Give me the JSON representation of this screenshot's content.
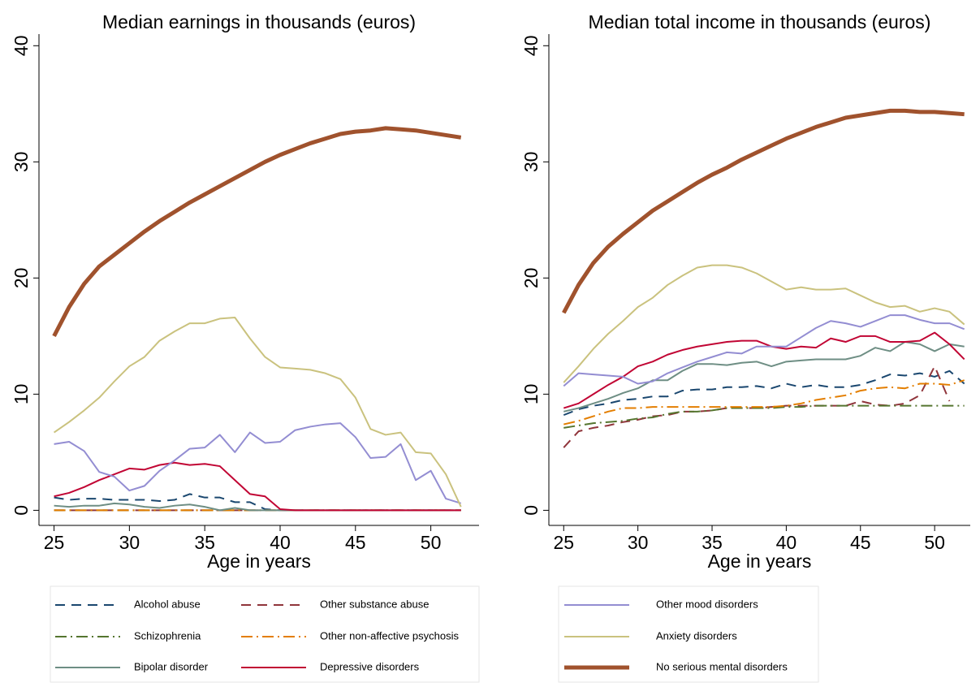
{
  "chart_data": [
    {
      "type": "line",
      "title": "Median earnings in thousands (euros)",
      "x_label": "Age in years",
      "x": [
        25,
        26,
        27,
        28,
        29,
        30,
        31,
        32,
        33,
        34,
        35,
        36,
        37,
        38,
        39,
        40,
        41,
        42,
        43,
        44,
        45,
        46,
        47,
        48,
        49,
        50,
        51,
        52
      ],
      "xlim": [
        24,
        53.2
      ],
      "xticks": [
        25,
        30,
        35,
        40,
        45,
        50
      ],
      "ylim": [
        -1.3,
        41
      ],
      "yticks": [
        0,
        10,
        20,
        30,
        40
      ],
      "series": [
        {
          "name": "Alcohol abuse",
          "color": "#1a476f",
          "style": "dash",
          "width": 2,
          "values": [
            1.1,
            0.9,
            1,
            1,
            0.9,
            0.9,
            0.9,
            0.8,
            0.9,
            1.4,
            1.1,
            1.1,
            0.7,
            0.7,
            0.1,
            0,
            0,
            0,
            0,
            0,
            0,
            0,
            0,
            0,
            0,
            0,
            0,
            0
          ]
        },
        {
          "name": "Other substance abuse",
          "color": "#90353b",
          "style": "dash",
          "width": 2,
          "values": [
            0,
            0,
            0,
            0,
            0,
            0,
            0,
            0,
            0,
            0,
            0,
            0,
            0,
            0,
            0,
            0,
            0,
            0,
            0,
            0,
            0,
            0,
            0,
            0,
            0,
            0,
            0,
            0
          ]
        },
        {
          "name": "Schizophrenia",
          "color": "#55752f",
          "style": "dashdot",
          "width": 2,
          "values": [
            0,
            0,
            0,
            0,
            0,
            0,
            0,
            0,
            0,
            0,
            0,
            0,
            0,
            0,
            0,
            0,
            0,
            0,
            0,
            0,
            0,
            0,
            0,
            0,
            0,
            0,
            0,
            0
          ]
        },
        {
          "name": "Other non-affective psychosis",
          "color": "#e37e00",
          "style": "dashdot",
          "width": 2,
          "values": [
            0,
            0,
            0,
            0,
            0,
            0,
            0,
            0,
            0,
            0,
            0,
            0,
            0,
            0,
            0,
            0,
            0,
            0,
            0,
            0,
            0,
            0,
            0,
            0,
            0,
            0,
            0,
            0
          ]
        },
        {
          "name": "Bipolar disorder",
          "color": "#6e8e84",
          "style": "solid",
          "width": 2,
          "values": [
            0.4,
            0.3,
            0.4,
            0.4,
            0.6,
            0.5,
            0.3,
            0.2,
            0.4,
            0.5,
            0.3,
            0,
            0.2,
            0,
            0,
            0,
            0,
            0,
            0,
            0,
            0,
            0,
            0,
            0,
            0,
            0,
            0,
            0
          ]
        },
        {
          "name": "Depressive disorders",
          "color": "#c10534",
          "style": "solid",
          "width": 2,
          "values": [
            1.2,
            1.5,
            2,
            2.6,
            3.1,
            3.6,
            3.5,
            3.9,
            4.1,
            3.9,
            4,
            3.8,
            2.6,
            1.4,
            1.2,
            0.1,
            0,
            0,
            0,
            0,
            0,
            0,
            0,
            0,
            0,
            0,
            0,
            0
          ]
        },
        {
          "name": "Other mood disorders",
          "color": "#938dd2",
          "style": "solid",
          "width": 2,
          "values": [
            5.7,
            5.9,
            5.1,
            3.3,
            2.9,
            1.7,
            2.1,
            3.4,
            4.3,
            5.3,
            5.4,
            6.5,
            5,
            6.7,
            5.8,
            5.9,
            6.9,
            7.2,
            7.4,
            7.5,
            6.3,
            4.5,
            4.6,
            5.7,
            2.6,
            3.4,
            1,
            0.6
          ]
        },
        {
          "name": "Anxiety disorders",
          "color": "#cac27e",
          "style": "solid",
          "width": 2,
          "values": [
            6.7,
            7.6,
            8.6,
            9.7,
            11.1,
            12.4,
            13.2,
            14.6,
            15.4,
            16.1,
            16.1,
            16.5,
            16.6,
            14.8,
            13.2,
            12.3,
            12.2,
            12.1,
            11.8,
            11.3,
            9.7,
            7,
            6.5,
            6.7,
            5,
            4.9,
            3.1,
            0.3
          ]
        },
        {
          "name": "No serious mental disorders",
          "color": "#a0522d",
          "style": "solid",
          "width": 5,
          "values": [
            15,
            17.5,
            19.5,
            21,
            22,
            23,
            24,
            24.9,
            25.7,
            26.5,
            27.2,
            27.9,
            28.6,
            29.3,
            30,
            30.6,
            31.1,
            31.6,
            32,
            32.4,
            32.6,
            32.7,
            32.9,
            32.8,
            32.7,
            32.5,
            32.3,
            32.1
          ]
        }
      ]
    },
    {
      "type": "line",
      "title": "Median total income in thousands (euros)",
      "x_label": "Age in years",
      "x": [
        25,
        26,
        27,
        28,
        29,
        30,
        31,
        32,
        33,
        34,
        35,
        36,
        37,
        38,
        39,
        40,
        41,
        42,
        43,
        44,
        45,
        46,
        47,
        48,
        49,
        50,
        51,
        52
      ],
      "xlim": [
        24,
        52.4
      ],
      "xticks": [
        25,
        30,
        35,
        40,
        45,
        50
      ],
      "ylim": [
        -1.3,
        41
      ],
      "yticks": [
        0,
        10,
        20,
        30,
        40
      ],
      "series": [
        {
          "name": "Alcohol abuse",
          "color": "#1a476f",
          "style": "dash",
          "width": 2,
          "values": [
            8.2,
            8.7,
            9,
            9.2,
            9.5,
            9.6,
            9.8,
            9.8,
            10.3,
            10.4,
            10.4,
            10.6,
            10.6,
            10.7,
            10.5,
            10.9,
            10.6,
            10.8,
            10.6,
            10.6,
            10.8,
            11.2,
            11.7,
            11.6,
            11.8,
            11.5,
            12,
            10.9
          ]
        },
        {
          "name": "Other substance abuse",
          "color": "#90353b",
          "style": "dash",
          "width": 2,
          "values": [
            5.4,
            6.8,
            7.1,
            7.3,
            7.6,
            7.8,
            8.1,
            8.2,
            8.5,
            8.5,
            8.6,
            8.8,
            8.8,
            8.8,
            8.9,
            9,
            9,
            9,
            9,
            9,
            9.4,
            9.1,
            9,
            9.2,
            9.9,
            12.4,
            9.4,
            null
          ]
        },
        {
          "name": "Schizophrenia",
          "color": "#55752f",
          "style": "dashdot",
          "width": 2,
          "values": [
            7.1,
            7.3,
            7.5,
            7.6,
            7.7,
            7.9,
            8,
            8.3,
            8.5,
            8.5,
            8.6,
            8.8,
            8.8,
            8.8,
            8.8,
            8.9,
            8.9,
            9,
            9,
            9,
            9,
            9,
            9,
            9,
            9,
            9,
            9,
            9
          ]
        },
        {
          "name": "Other non-affective psychosis",
          "color": "#e37e00",
          "style": "dashdot",
          "width": 2,
          "values": [
            7.4,
            7.7,
            8.1,
            8.5,
            8.8,
            8.8,
            8.9,
            8.9,
            8.9,
            8.9,
            8.9,
            8.9,
            8.9,
            8.9,
            8.9,
            9,
            9.2,
            9.5,
            9.7,
            9.9,
            10.3,
            10.5,
            10.6,
            10.5,
            10.9,
            10.9,
            10.8,
            11.2
          ]
        },
        {
          "name": "Bipolar disorder",
          "color": "#6e8e84",
          "style": "solid",
          "width": 2,
          "values": [
            8.5,
            8.8,
            9.2,
            9.6,
            10.1,
            10.5,
            11.2,
            11.2,
            12,
            12.6,
            12.6,
            12.5,
            12.7,
            12.8,
            12.4,
            12.8,
            12.9,
            13,
            13,
            13,
            13.3,
            14,
            13.7,
            14.5,
            14.3,
            13.7,
            14.3,
            14.1
          ]
        },
        {
          "name": "Depressive disorders",
          "color": "#c10534",
          "style": "solid",
          "width": 2,
          "values": [
            8.8,
            9.2,
            10,
            10.8,
            11.5,
            12.4,
            12.8,
            13.4,
            13.8,
            14.1,
            14.3,
            14.5,
            14.6,
            14.6,
            14.1,
            13.9,
            14.1,
            14,
            14.8,
            14.5,
            15,
            15,
            14.5,
            14.5,
            14.6,
            15.3,
            14.3,
            13
          ]
        },
        {
          "name": "Other mood disorders",
          "color": "#938dd2",
          "style": "solid",
          "width": 2,
          "values": [
            10.7,
            11.8,
            11.7,
            11.6,
            11.5,
            10.9,
            11.1,
            11.8,
            12.3,
            12.8,
            13.2,
            13.6,
            13.5,
            14.1,
            14.1,
            14.1,
            14.9,
            15.7,
            16.3,
            16.1,
            15.8,
            16.3,
            16.8,
            16.8,
            16.4,
            16.1,
            16.1,
            15.6
          ]
        },
        {
          "name": "Anxiety disorders",
          "color": "#cac27e",
          "style": "solid",
          "width": 2,
          "values": [
            11,
            12.4,
            13.9,
            15.2,
            16.3,
            17.5,
            18.3,
            19.4,
            20.2,
            20.9,
            21.1,
            21.1,
            20.9,
            20.4,
            19.7,
            19,
            19.2,
            19,
            19,
            19.1,
            18.5,
            17.9,
            17.5,
            17.6,
            17.1,
            17.4,
            17.1,
            16
          ]
        },
        {
          "name": "No serious mental disorders",
          "color": "#a0522d",
          "style": "solid",
          "width": 5,
          "values": [
            17,
            19.4,
            21.3,
            22.7,
            23.8,
            24.8,
            25.8,
            26.6,
            27.4,
            28.2,
            28.9,
            29.5,
            30.2,
            30.8,
            31.4,
            32,
            32.5,
            33,
            33.4,
            33.8,
            34,
            34.2,
            34.4,
            34.4,
            34.3,
            34.3,
            34.2,
            34.1
          ]
        }
      ]
    }
  ]
}
